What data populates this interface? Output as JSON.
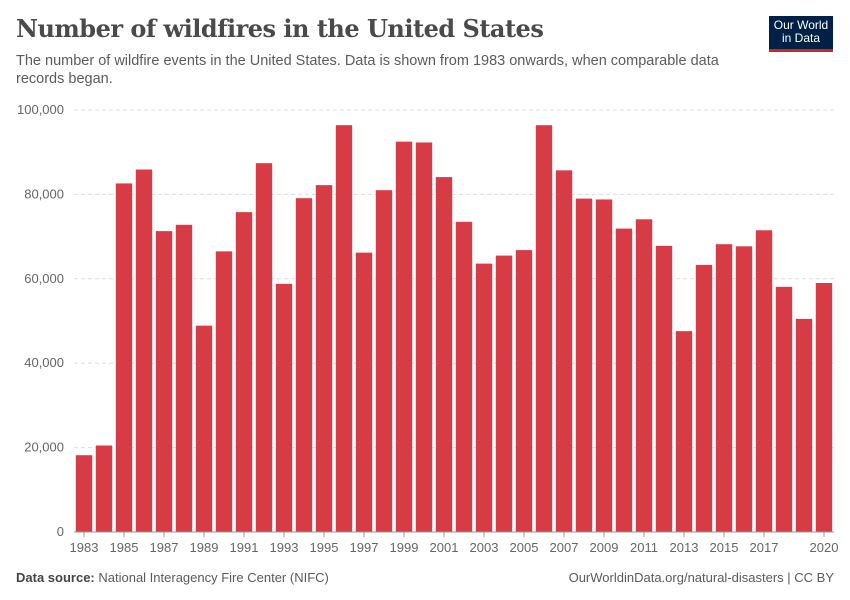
{
  "header": {
    "title": "Number of wildfires in the United States",
    "subtitle": "The number of wildfire events in the United States. Data is shown from 1983 onwards, when comparable data records began.",
    "logo": "Our World in Data"
  },
  "footer": {
    "source_label": "Data source:",
    "source": "National Interagency Fire Center (NIFC)",
    "url": "OurWorldinData.org/natural-disasters | CC BY"
  },
  "chart_data": {
    "type": "bar",
    "color": "#d73c46",
    "ylim": [
      0,
      100000
    ],
    "grid": true,
    "yticks": [
      0,
      20000,
      40000,
      60000,
      80000,
      100000
    ],
    "ytick_labels": [
      "0",
      "20,000",
      "40,000",
      "60,000",
      "80,000",
      "100,000"
    ],
    "xtick_labels": [
      "1983",
      "1985",
      "1987",
      "1989",
      "1991",
      "1993",
      "1995",
      "1997",
      "1999",
      "2001",
      "2003",
      "2005",
      "2007",
      "2009",
      "2011",
      "2013",
      "2015",
      "2017",
      "2020"
    ],
    "categories": [
      1983,
      1984,
      1985,
      1986,
      1987,
      1988,
      1989,
      1990,
      1991,
      1992,
      1993,
      1994,
      1995,
      1996,
      1997,
      1998,
      1999,
      2000,
      2001,
      2002,
      2003,
      2004,
      2005,
      2006,
      2007,
      2008,
      2009,
      2010,
      2011,
      2012,
      2013,
      2014,
      2015,
      2016,
      2017,
      2018,
      2019,
      2020
    ],
    "values": [
      18200,
      20500,
      82600,
      85900,
      71300,
      72800,
      48900,
      66500,
      75800,
      87400,
      58800,
      79100,
      82200,
      96400,
      66200,
      81000,
      92500,
      92300,
      84100,
      73500,
      63600,
      65500,
      66800,
      96400,
      85700,
      79000,
      78800,
      71900,
      74100,
      67800,
      47600,
      63300,
      68200,
      67700,
      71500,
      58100,
      50500,
      59000
    ]
  }
}
